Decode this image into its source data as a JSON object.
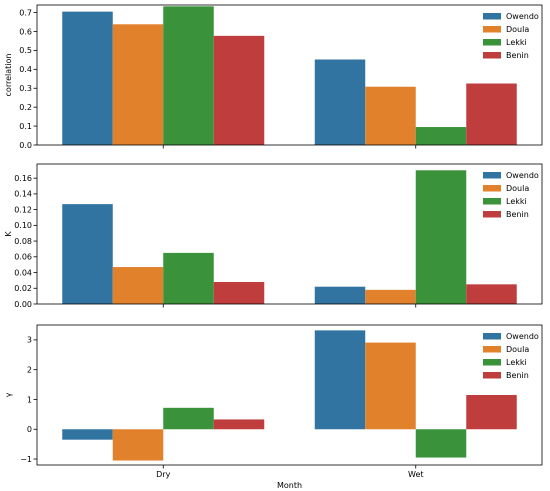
{
  "chart_data": [
    {
      "type": "bar",
      "categories": [
        "Dry",
        "Wet"
      ],
      "series": [
        {
          "name": "Owendo",
          "color": "#3274a1",
          "values": [
            0.705,
            0.452
          ]
        },
        {
          "name": "Doula",
          "color": "#e1812c",
          "values": [
            0.638,
            0.308
          ]
        },
        {
          "name": "Lekki",
          "color": "#3a923a",
          "values": [
            0.733,
            0.095
          ]
        },
        {
          "name": "Benin",
          "color": "#c03d3e",
          "values": [
            0.577,
            0.325
          ]
        }
      ],
      "ylabel": "correlation",
      "xlabel": "",
      "ylim": [
        0,
        0.74
      ],
      "yticks": [
        0,
        0.1,
        0.2,
        0.3,
        0.4,
        0.5,
        0.6,
        0.7
      ],
      "ytick_labels": [
        "0.0",
        "0.1",
        "0.2",
        "0.3",
        "0.4",
        "0.5",
        "0.6",
        "0.7"
      ],
      "legend": "top-right"
    },
    {
      "type": "bar",
      "categories": [
        "Dry",
        "Wet"
      ],
      "series": [
        {
          "name": "Owendo",
          "color": "#3274a1",
          "values": [
            0.127,
            0.022
          ]
        },
        {
          "name": "Doula",
          "color": "#e1812c",
          "values": [
            0.047,
            0.018
          ]
        },
        {
          "name": "Lekki",
          "color": "#3a923a",
          "values": [
            0.065,
            0.17
          ]
        },
        {
          "name": "Benin",
          "color": "#c03d3e",
          "values": [
            0.028,
            0.025
          ]
        }
      ],
      "ylabel": "K",
      "xlabel": "",
      "ylim": [
        0,
        0.178
      ],
      "yticks": [
        0,
        0.02,
        0.04,
        0.06,
        0.08,
        0.1,
        0.12,
        0.14,
        0.16
      ],
      "ytick_labels": [
        "0.00",
        "0.02",
        "0.04",
        "0.06",
        "0.08",
        "0.10",
        "0.12",
        "0.14",
        "0.16"
      ],
      "legend": "top-right"
    },
    {
      "type": "bar",
      "categories": [
        "Dry",
        "Wet"
      ],
      "series": [
        {
          "name": "Owendo",
          "color": "#3274a1",
          "values": [
            -0.35,
            3.32
          ]
        },
        {
          "name": "Doula",
          "color": "#e1812c",
          "values": [
            -1.05,
            2.91
          ]
        },
        {
          "name": "Lekki",
          "color": "#3a923a",
          "values": [
            0.72,
            -0.95
          ]
        },
        {
          "name": "Benin",
          "color": "#c03d3e",
          "values": [
            0.33,
            1.15
          ]
        }
      ],
      "ylabel": "γ",
      "xlabel": "Month",
      "ylim": [
        -1.2,
        3.5
      ],
      "yticks": [
        -1,
        0,
        1,
        2,
        3
      ],
      "ytick_labels": [
        "−1",
        "0",
        "1",
        "2",
        "3"
      ],
      "legend": "top-right"
    }
  ]
}
